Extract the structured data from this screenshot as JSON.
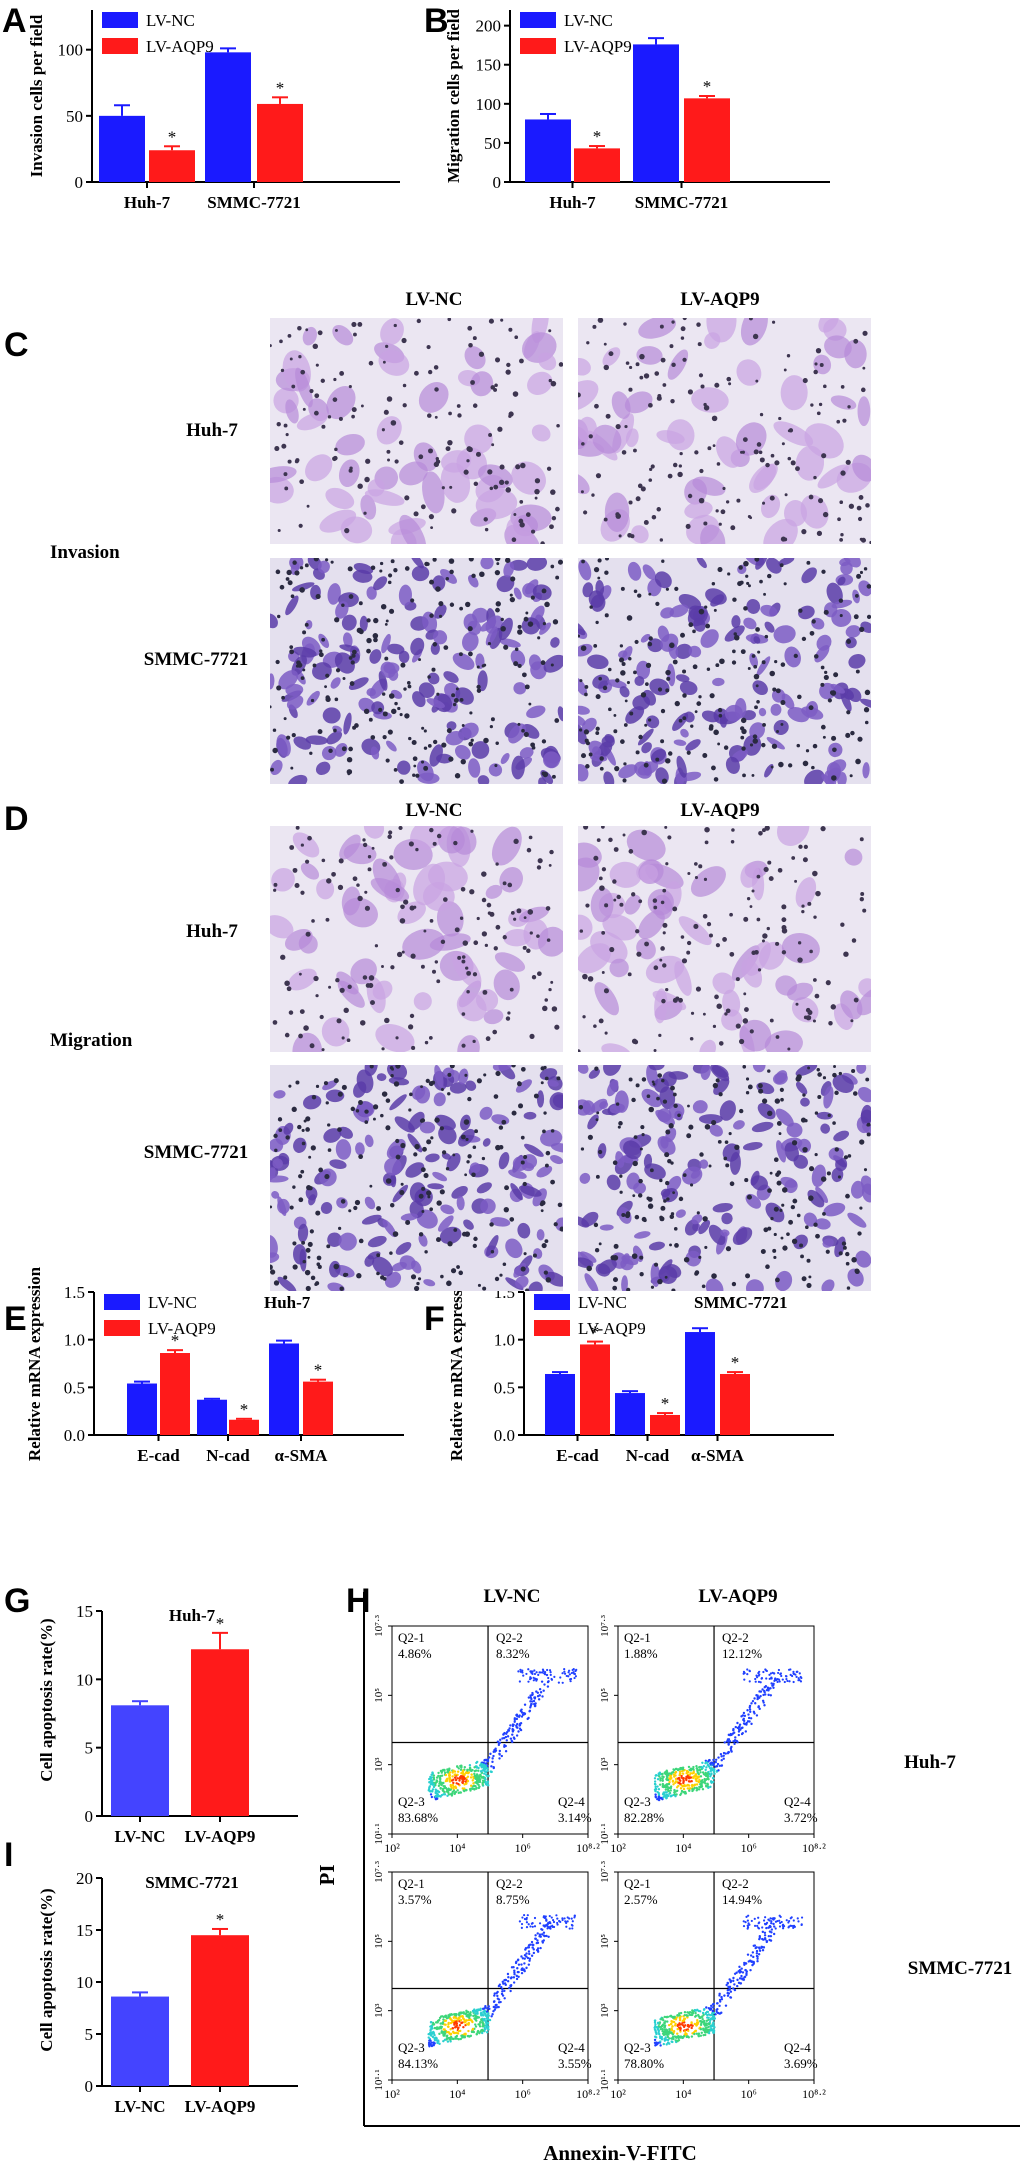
{
  "colors": {
    "blue": "#1a1aff",
    "red": "#ff1a1a",
    "blue_light": "#4444ff",
    "black": "#000000"
  },
  "panel_letters": [
    "A",
    "B",
    "C",
    "D",
    "E",
    "F",
    "G",
    "H",
    "I"
  ],
  "micrograph": {
    "col_labels": [
      "LV-NC",
      "LV-AQP9"
    ],
    "row_labels": [
      "Huh-7",
      "SMMC-7721"
    ],
    "sections": [
      "Invasion",
      "Migration"
    ]
  },
  "chart_data": [
    {
      "id": "A",
      "type": "bar",
      "categories": [
        "Huh-7",
        "SMMC-7721"
      ],
      "series": [
        {
          "name": "LV-NC",
          "values": [
            50,
            98
          ],
          "errors": [
            8,
            3
          ]
        },
        {
          "name": "LV-AQP9",
          "values": [
            24,
            59
          ],
          "errors": [
            3,
            5
          ]
        }
      ],
      "significance": [
        "*",
        "*"
      ],
      "ylabel": "Invasion cells per field",
      "ylim": [
        0,
        130
      ],
      "yticks": [
        0,
        50,
        100
      ],
      "legend": "top-left"
    },
    {
      "id": "B",
      "type": "bar",
      "categories": [
        "Huh-7",
        "SMMC-7721"
      ],
      "series": [
        {
          "name": "LV-NC",
          "values": [
            80,
            176
          ],
          "errors": [
            7,
            8
          ]
        },
        {
          "name": "LV-AQP9",
          "values": [
            43,
            107
          ],
          "errors": [
            3,
            3
          ]
        }
      ],
      "significance": [
        "*",
        "*"
      ],
      "ylabel": "Migration cells per field",
      "ylim": [
        0,
        220
      ],
      "yticks": [
        0,
        50,
        100,
        150,
        200
      ],
      "legend": "top-left"
    },
    {
      "id": "E",
      "type": "bar",
      "title": "Huh-7",
      "categories": [
        "E-cad",
        "N-cad",
        "α-SMA"
      ],
      "series": [
        {
          "name": "LV-NC",
          "values": [
            0.54,
            0.37,
            0.96
          ],
          "errors": [
            0.02,
            0.01,
            0.03
          ]
        },
        {
          "name": "LV-AQP9",
          "values": [
            0.86,
            0.16,
            0.56
          ],
          "errors": [
            0.03,
            0.01,
            0.02
          ]
        }
      ],
      "significance": [
        "*",
        "*",
        "*"
      ],
      "ylabel": "Relative mRNA expression",
      "ylim": [
        0,
        1.5
      ],
      "yticks": [
        0.0,
        0.5,
        1.0,
        1.5
      ],
      "tick_fmt": 1,
      "legend": "top-left"
    },
    {
      "id": "F",
      "type": "bar",
      "title": "SMMC-7721",
      "categories": [
        "E-cad",
        "N-cad",
        "α-SMA"
      ],
      "series": [
        {
          "name": "LV-NC",
          "values": [
            0.64,
            0.44,
            1.08
          ],
          "errors": [
            0.02,
            0.02,
            0.04
          ]
        },
        {
          "name": "LV-AQP9",
          "values": [
            0.95,
            0.21,
            0.64
          ],
          "errors": [
            0.03,
            0.02,
            0.02
          ]
        }
      ],
      "significance": [
        "*",
        "*",
        "*"
      ],
      "ylabel": "Relative mRNA expression",
      "ylim": [
        0,
        1.5
      ],
      "yticks": [
        0.0,
        0.5,
        1.0,
        1.5
      ],
      "tick_fmt": 1,
      "legend": "top-left"
    },
    {
      "id": "G",
      "type": "bar",
      "title": "Huh-7",
      "categories": [
        "LV-NC",
        "LV-AQP9"
      ],
      "values": [
        8.1,
        12.2
      ],
      "errors": [
        0.3,
        1.2
      ],
      "significance": [
        "",
        "*"
      ],
      "ylabel": "Cell apoptosis rate(%)",
      "ylim": [
        0,
        15
      ],
      "yticks": [
        0,
        5,
        10,
        15
      ]
    },
    {
      "id": "I",
      "type": "bar",
      "title": "SMMC-7721",
      "categories": [
        "LV-NC",
        "LV-AQP9"
      ],
      "values": [
        8.6,
        14.5
      ],
      "errors": [
        0.4,
        0.6
      ],
      "significance": [
        "",
        "*"
      ],
      "ylabel": "Cell apoptosis rate(%)",
      "ylim": [
        0,
        20
      ],
      "yticks": [
        0,
        5,
        10,
        15,
        20
      ]
    },
    {
      "id": "H",
      "type": "scatter",
      "xlabel": "Annexin-V-FITC",
      "ylabel": "PI",
      "col_labels": [
        "LV-NC",
        "LV-AQP9"
      ],
      "row_labels": [
        "Huh-7",
        "SMMC-7721"
      ],
      "x_ticks": [
        "10²",
        "10⁴",
        "10⁶",
        "10⁸·²"
      ],
      "y_ticks": [
        "10¹·¹",
        "10³",
        "10⁵",
        "10⁷·³"
      ],
      "plots": [
        {
          "row": "Huh-7",
          "col": "LV-NC",
          "quadrants": {
            "Q2-1": "4.86%",
            "Q2-2": "8.32%",
            "Q2-3": "83.68%",
            "Q2-4": "3.14%"
          }
        },
        {
          "row": "Huh-7",
          "col": "LV-AQP9",
          "quadrants": {
            "Q2-1": "1.88%",
            "Q2-2": "12.12%",
            "Q2-3": "82.28%",
            "Q2-4": "3.72%"
          }
        },
        {
          "row": "SMMC-7721",
          "col": "LV-NC",
          "quadrants": {
            "Q2-1": "3.57%",
            "Q2-2": "8.75%",
            "Q2-3": "84.13%",
            "Q2-4": "3.55%"
          }
        },
        {
          "row": "SMMC-7721",
          "col": "LV-AQP9",
          "quadrants": {
            "Q2-1": "2.57%",
            "Q2-2": "14.94%",
            "Q2-3": "78.80%",
            "Q2-4": "3.69%"
          }
        }
      ]
    }
  ]
}
